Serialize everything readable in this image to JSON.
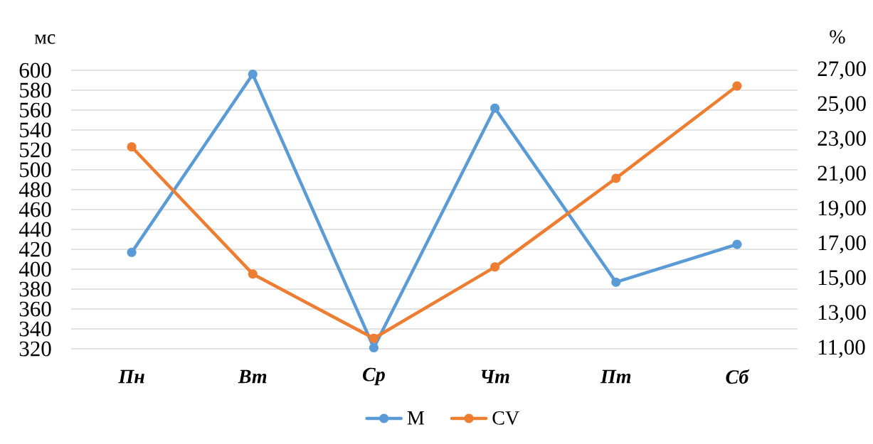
{
  "chart_data": {
    "type": "line",
    "ylabel": "мс",
    "y2label": "%",
    "categories": [
      "Пн",
      "Вт",
      "Ср",
      "Чт",
      "Пт",
      "Сб"
    ],
    "series": [
      {
        "name": "M",
        "color": "#5b9bd5",
        "values": [
          417,
          596,
          321,
          562,
          387,
          425
        ]
      },
      {
        "name": "CV",
        "color": "#ed7d31",
        "axis": "y2",
        "values": [
          22.6,
          15.3,
          11.6,
          15.7,
          20.8,
          26.1
        ]
      }
    ],
    "ylim": [
      320,
      600
    ],
    "yticks": [
      320,
      340,
      360,
      380,
      400,
      420,
      440,
      460,
      480,
      500,
      520,
      540,
      560,
      580,
      600
    ],
    "y2lim": [
      11,
      27
    ],
    "y2ticks": [
      {
        "value": 11,
        "label": "11,00"
      },
      {
        "value": 13,
        "label": "13,00"
      },
      {
        "value": 15,
        "label": "15,00"
      },
      {
        "value": 17,
        "label": "17,00"
      },
      {
        "value": 19,
        "label": "19,00"
      },
      {
        "value": 21,
        "label": "21,00"
      },
      {
        "value": 23,
        "label": "23,00"
      },
      {
        "value": 25,
        "label": "25,00"
      },
      {
        "value": 27,
        "label": "27,00"
      }
    ],
    "grid": "y",
    "legend": "bottom",
    "marker": "circle",
    "line_style": "solid"
  }
}
